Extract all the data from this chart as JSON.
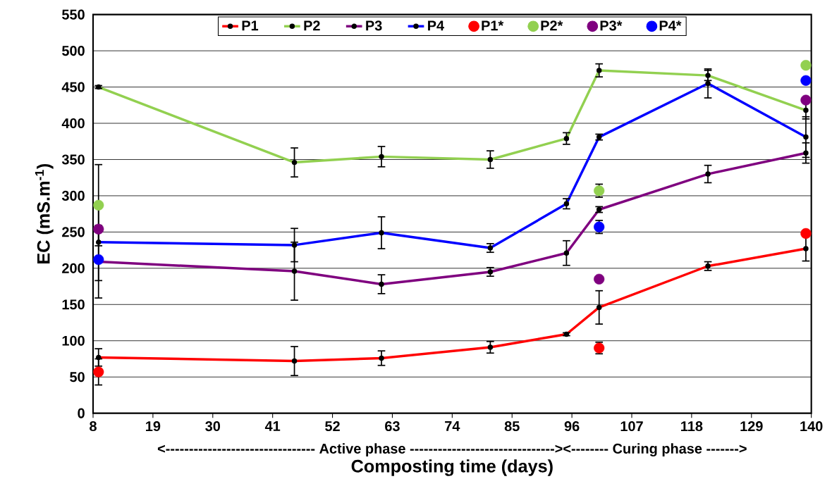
{
  "chart_data": {
    "type": "line",
    "xlabel": "Composting time (days)",
    "ylabel": "EC (mS.m$^{-1}$)",
    "annotations": [
      "<-------------------------------- Active phase -------------------------------><-------- Curing phase ------->"
    ],
    "xlim": [
      8,
      140
    ],
    "xticks": [
      8,
      19,
      30,
      41,
      52,
      63,
      74,
      85,
      96,
      107,
      118,
      129,
      140
    ],
    "ylim": [
      0,
      550
    ],
    "yticks": [
      0,
      50,
      100,
      150,
      200,
      250,
      300,
      350,
      400,
      450,
      500,
      550
    ],
    "grid": "y",
    "legend": "top",
    "marker": "circle",
    "line_style": "solid",
    "series": [
      {
        "name": "P1",
        "color": "#ff0000",
        "x": [
          9,
          45,
          61,
          81,
          95,
          101,
          121,
          139
        ],
        "values": [
          77,
          72,
          76,
          91,
          109,
          146,
          203,
          227
        ],
        "errors": [
          12,
          20,
          10,
          8,
          2,
          23,
          6,
          17
        ]
      },
      {
        "name": "P2",
        "color": "#92d050",
        "x": [
          9,
          45,
          61,
          81,
          95,
          101,
          121,
          139
        ],
        "values": [
          450,
          346,
          354,
          350,
          379,
          473,
          466,
          418
        ],
        "errors": [
          2,
          20,
          14,
          12,
          8,
          9,
          7,
          12
        ]
      },
      {
        "name": "P3",
        "color": "#7f007f",
        "x": [
          9,
          45,
          61,
          81,
          95,
          101,
          121,
          139
        ],
        "values": [
          209,
          196,
          178,
          195,
          221,
          281,
          330,
          359
        ],
        "errors": [
          50,
          40,
          13,
          6,
          17,
          4,
          12,
          14
        ]
      },
      {
        "name": "P4",
        "color": "#0000ff",
        "x": [
          9,
          45,
          61,
          81,
          95,
          101,
          121,
          139
        ],
        "values": [
          236,
          232,
          249,
          228,
          289,
          381,
          455,
          381
        ],
        "errors": [
          53,
          23,
          22,
          6,
          7,
          4,
          20,
          28
        ]
      },
      {
        "name": "P1*",
        "type": "scatter",
        "color": "#ff0000",
        "x": [
          9,
          101,
          139
        ],
        "values": [
          57,
          90,
          248
        ],
        "errors": [
          18,
          8,
          null
        ]
      },
      {
        "name": "P2*",
        "type": "scatter",
        "color": "#92d050",
        "x": [
          9,
          101,
          139
        ],
        "values": [
          287,
          307,
          480
        ],
        "errors": [
          56,
          9,
          null
        ]
      },
      {
        "name": "P3*",
        "type": "scatter",
        "color": "#7f007f",
        "x": [
          9,
          101,
          139
        ],
        "values": [
          254,
          185,
          432
        ],
        "errors": [
          null,
          null,
          null
        ]
      },
      {
        "name": "P4*",
        "type": "scatter",
        "color": "#0000ff",
        "x": [
          9,
          101,
          139
        ],
        "values": [
          212,
          257,
          459
        ],
        "errors": [
          null,
          9,
          null
        ]
      }
    ]
  }
}
